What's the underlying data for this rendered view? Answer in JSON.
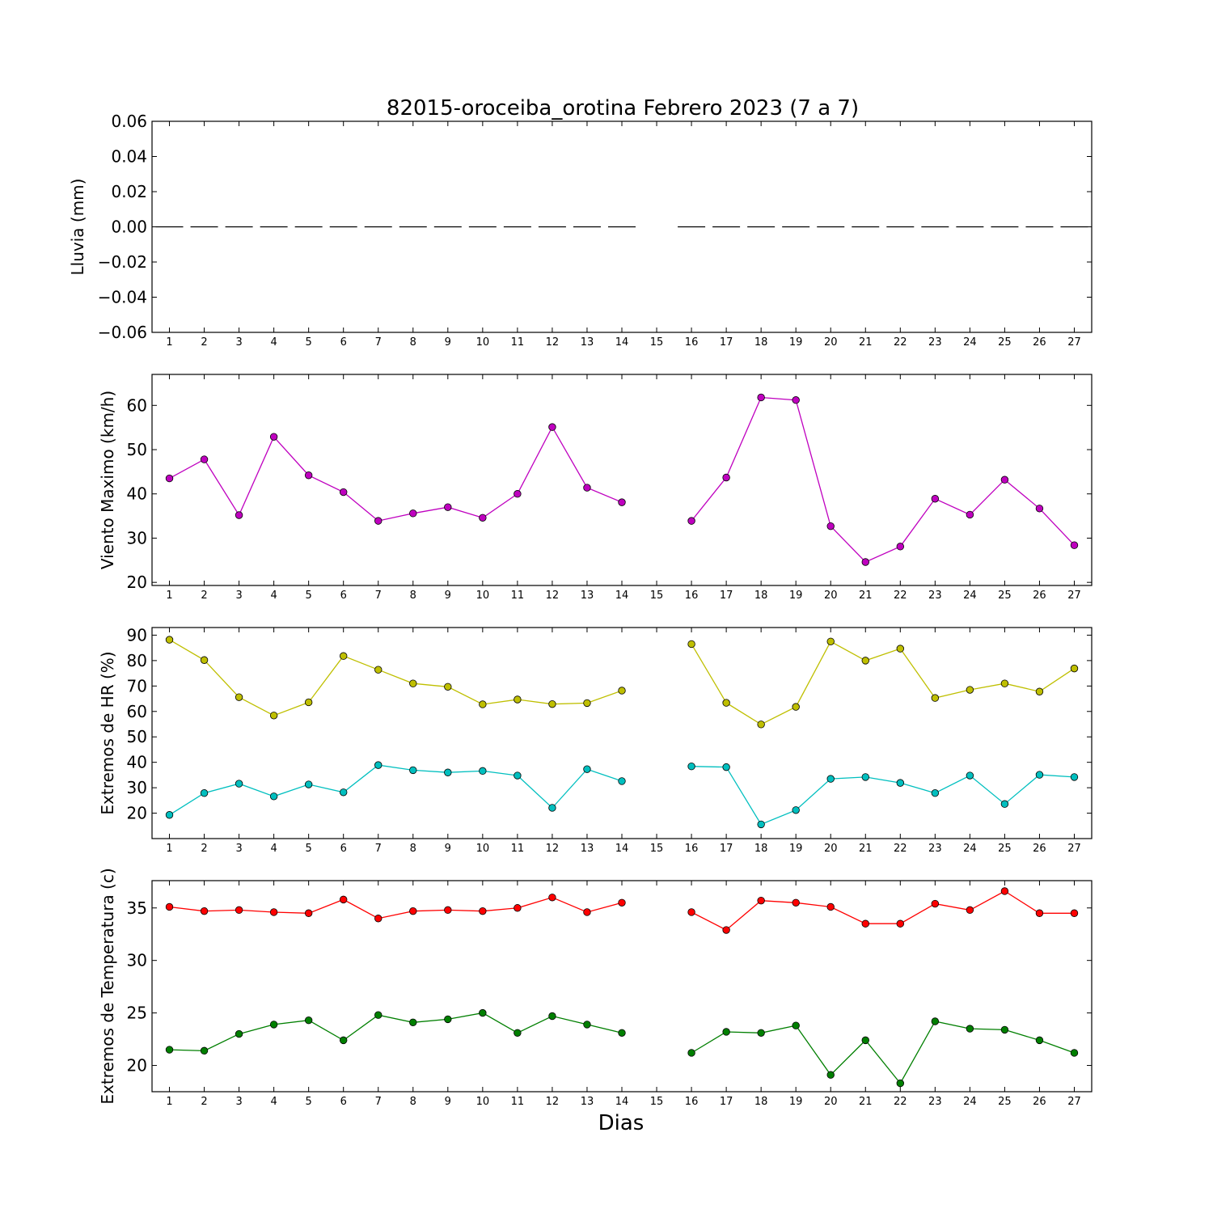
{
  "chart_data": {
    "type": "line",
    "title": "82015-oroceiba_orotina Febrero 2023  (7 a 7)",
    "xlabel": "Dias",
    "x": [
      1,
      2,
      3,
      4,
      5,
      6,
      7,
      8,
      9,
      10,
      11,
      12,
      13,
      14,
      15,
      16,
      17,
      18,
      19,
      20,
      21,
      22,
      23,
      24,
      25,
      26,
      27
    ],
    "xticklabels": [
      "1",
      "2",
      "3",
      "4",
      "5",
      "6",
      "7",
      "8",
      "9",
      "10",
      "11",
      "12",
      "13",
      "14",
      "15",
      "16",
      "17",
      "18",
      "19",
      "20",
      "21",
      "22",
      "23",
      "24",
      "25",
      "26",
      "27"
    ],
    "xlim": [
      0.5,
      27.5
    ],
    "panels": [
      {
        "ylabel": "Lluvia (mm)",
        "ylim": [
          -0.06,
          0.06
        ],
        "yticks": [
          -0.06,
          -0.04,
          -0.02,
          0.0,
          0.02,
          0.04,
          0.06
        ],
        "yticklabels": [
          "−0.06",
          "−0.04",
          "−0.02",
          "0.00",
          "0.02",
          "0.04",
          "0.06"
        ],
        "style": "bars",
        "series": [
          {
            "color": "#000000",
            "values": [
              0,
              0,
              0,
              0,
              0,
              0,
              0,
              0,
              0,
              0,
              0,
              0,
              0,
              0,
              null,
              0,
              0,
              0,
              0,
              0,
              0,
              0,
              0,
              0,
              0,
              0,
              0
            ]
          }
        ]
      },
      {
        "ylabel": "Viento Maximo (km/h)",
        "ylim": [
          19.3,
          67
        ],
        "yticks": [
          20,
          30,
          40,
          50,
          60
        ],
        "yticklabels": [
          "20",
          "30",
          "40",
          "50",
          "60"
        ],
        "style": "line",
        "series": [
          {
            "color": "#bf00bf",
            "values": [
              43.5,
              47.8,
              35.2,
              52.9,
              44.2,
              40.4,
              33.9,
              35.6,
              37.0,
              34.6,
              40.0,
              55.1,
              41.4,
              38.1,
              null,
              33.9,
              43.7,
              61.8,
              61.2,
              32.7,
              24.6,
              28.1,
              38.9,
              35.3,
              43.2,
              36.7,
              28.4
            ]
          }
        ]
      },
      {
        "ylabel": "Extremos de HR (%)",
        "ylim": [
          10,
          93
        ],
        "yticks": [
          20,
          30,
          40,
          50,
          60,
          70,
          80,
          90
        ],
        "yticklabels": [
          "20",
          "30",
          "40",
          "50",
          "60",
          "70",
          "80",
          "90"
        ],
        "style": "line",
        "series": [
          {
            "color": "#bfbf00",
            "values": [
              88.2,
              80.2,
              65.6,
              58.4,
              63.6,
              81.8,
              76.4,
              71.0,
              69.7,
              62.8,
              64.7,
              62.9,
              63.3,
              68.2,
              null,
              86.5,
              63.4,
              54.9,
              61.8,
              87.5,
              80.0,
              84.7,
              65.3,
              68.5,
              71.0,
              67.8,
              76.9
            ]
          },
          {
            "color": "#00bfbf",
            "values": [
              19.3,
              27.9,
              31.6,
              26.6,
              31.3,
              28.2,
              38.9,
              36.9,
              36.0,
              36.6,
              34.8,
              22.1,
              37.3,
              32.6,
              null,
              38.4,
              38.1,
              15.6,
              21.2,
              33.5,
              34.2,
              31.9,
              27.9,
              34.8,
              23.6,
              35.1,
              34.2
            ]
          }
        ]
      },
      {
        "ylabel": "Extremos de Temperatura (c)",
        "ylim": [
          17.5,
          37.6
        ],
        "yticks": [
          20,
          25,
          30,
          35
        ],
        "yticklabels": [
          "20",
          "25",
          "30",
          "35"
        ],
        "style": "line",
        "series": [
          {
            "color": "#ff0000",
            "values": [
              35.1,
              34.7,
              34.8,
              34.6,
              34.5,
              35.8,
              34.0,
              34.7,
              34.8,
              34.7,
              35.0,
              36.0,
              34.6,
              35.5,
              null,
              34.6,
              32.9,
              35.7,
              35.5,
              35.1,
              33.5,
              33.5,
              35.4,
              34.8,
              36.6,
              34.5,
              34.5
            ]
          },
          {
            "color": "#007f00",
            "values": [
              21.5,
              21.4,
              23.0,
              23.9,
              24.3,
              22.4,
              24.8,
              24.1,
              24.4,
              25.0,
              23.1,
              24.7,
              23.9,
              23.1,
              null,
              21.2,
              23.2,
              23.1,
              23.8,
              19.1,
              22.4,
              18.3,
              24.2,
              23.5,
              23.4,
              22.4,
              21.2
            ]
          }
        ]
      }
    ]
  }
}
